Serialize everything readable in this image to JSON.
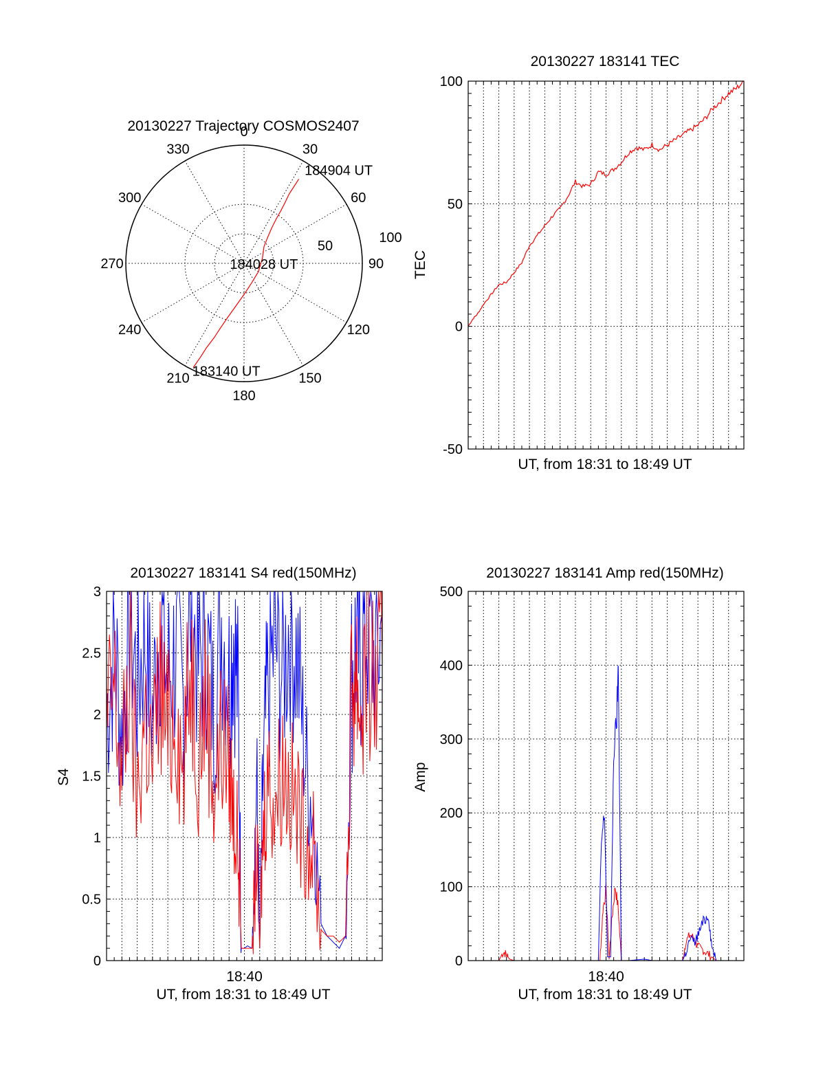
{
  "chart_data": [
    {
      "type": "polar-trajectory",
      "title": "20130227 Trajectory COSMOS2407",
      "angle_labels": [
        "0",
        "30",
        "60",
        "90",
        "120",
        "150",
        "180",
        "210",
        "240",
        "270",
        "300",
        "330"
      ],
      "radial_labels": [
        "50",
        "100"
      ],
      "radial_max": 100,
      "grid": true,
      "series": [
        {
          "color": "#ff0000",
          "points": [
            [
              206,
              98
            ],
            [
              205,
              88
            ],
            [
              204,
              78
            ],
            [
              202,
              68
            ],
            [
              200,
              58
            ],
            [
              197,
              48
            ],
            [
              193,
              40
            ],
            [
              187,
              32
            ],
            [
              178,
              25
            ],
            [
              160,
              18
            ],
            [
              120,
              14
            ],
            [
              75,
              16
            ],
            [
              50,
              22
            ],
            [
              42,
              30
            ],
            [
              38,
              38
            ],
            [
              36,
              46
            ],
            [
              35,
              54
            ],
            [
              34,
              62
            ],
            [
              33,
              70
            ],
            [
              33,
              78
            ],
            [
              33,
              85
            ]
          ]
        }
      ],
      "annotations": [
        {
          "label": "183140 UT",
          "at": [
            206,
            98
          ]
        },
        {
          "label": "184028 UT",
          "at": [
            120,
            14
          ]
        },
        {
          "label": "184904 UT",
          "at": [
            33,
            85
          ]
        }
      ]
    },
    {
      "type": "line",
      "title": "20130227 183141 TEC",
      "xlabel": "UT, from 18:31 to 18:49 UT",
      "ylabel": "TEC",
      "xlim": [
        0,
        18
      ],
      "ylim": [
        -50,
        100
      ],
      "yticks": [
        "-50",
        "0",
        "50",
        "100"
      ],
      "xticks": [],
      "grid": true,
      "series": [
        {
          "color": "#ff0000",
          "x": [
            0,
            0.3,
            0.6,
            1.0,
            1.5,
            2.0,
            2.5,
            3.0,
            3.5,
            4.0,
            4.5,
            5.0,
            5.5,
            6.0,
            6.5,
            7.0,
            7.5,
            8.0,
            8.5,
            9.0,
            9.5,
            10.0,
            10.5,
            11.0,
            11.5,
            12.0,
            12.5,
            13.0,
            13.5,
            14.0,
            14.5,
            15.0,
            15.5,
            16.0,
            16.5,
            17.0,
            17.5,
            18.0
          ],
          "values": [
            0,
            3,
            5,
            9,
            13,
            17,
            18,
            22,
            26,
            33,
            37,
            41,
            45,
            48,
            53,
            59,
            57,
            58,
            63,
            62,
            64,
            67,
            71,
            73,
            72,
            74,
            72,
            74,
            76,
            78,
            80,
            82,
            85,
            89,
            92,
            95,
            97,
            100
          ]
        }
      ]
    },
    {
      "type": "line",
      "title": "20130227 183141 S4 red(150MHz)",
      "xlabel": "UT, from 18:31 to 18:49 UT",
      "ylabel": "S4",
      "xlim": [
        0,
        18
      ],
      "ylim": [
        0,
        3
      ],
      "yticks": [
        "0",
        "0.5",
        "1",
        "1.5",
        "2",
        "2.5",
        "3"
      ],
      "xticks": [
        {
          "value": 9,
          "label": "18:40"
        }
      ],
      "grid": true,
      "series": [
        {
          "color": "#0000ff",
          "x": [
            0,
            0.5,
            1,
            1.5,
            2,
            2.5,
            3,
            3.5,
            4,
            4.5,
            5,
            5.5,
            6,
            6.5,
            7,
            7.5,
            8,
            8.3,
            8.6,
            8.8,
            9,
            9.2,
            9.5,
            9.8,
            10,
            10.2,
            10.5,
            11,
            11.5,
            12,
            12.5,
            13,
            13.5,
            14,
            14.4,
            14.8,
            15.2,
            15.6,
            16,
            16.3,
            16.6,
            17,
            17.5,
            18
          ],
          "values": [
            2.0,
            2.6,
            1.8,
            2.9,
            2.2,
            2.7,
            2.0,
            2.8,
            2.3,
            2.5,
            2.1,
            2.9,
            2.4,
            2.6,
            2.0,
            2.8,
            2.3,
            2.7,
            2.1,
            0.1,
            0.1,
            0.12,
            0.1,
            1.5,
            0.1,
            1.4,
            2.2,
            2.6,
            2.3,
            2.8,
            2.4,
            1.6,
            1.2,
            0.3,
            0.2,
            0.15,
            0.1,
            0.2,
            2.3,
            2.6,
            2.5,
            2.8,
            2.4,
            2.7
          ]
        },
        {
          "color": "#ff0000",
          "x": [
            0,
            0.5,
            1,
            1.5,
            2,
            2.5,
            3,
            3.5,
            4,
            4.5,
            5,
            5.5,
            6,
            6.5,
            7,
            7.5,
            8,
            8.3,
            8.6,
            8.8,
            9,
            9.2,
            9.5,
            9.8,
            10,
            10.2,
            10.5,
            11,
            11.5,
            12,
            12.5,
            13,
            13.5,
            14,
            14.4,
            14.8,
            15.2,
            15.6,
            16,
            16.3,
            16.6,
            17,
            17.5,
            18
          ],
          "values": [
            1.9,
            2.2,
            1.5,
            2.4,
            1.3,
            2.0,
            1.6,
            2.3,
            1.8,
            2.1,
            1.5,
            2.5,
            1.7,
            2.2,
            1.4,
            1.8,
            1.6,
            1.2,
            0.9,
            0.1,
            0.1,
            0.1,
            0.1,
            0.9,
            0.1,
            1.0,
            1.5,
            1.3,
            1.6,
            1.4,
            1.2,
            1.0,
            0.9,
            0.25,
            0.2,
            0.2,
            0.15,
            0.2,
            2.2,
            2.4,
            2.0,
            2.5,
            2.2,
            2.4
          ]
        }
      ]
    },
    {
      "type": "line",
      "title": "20130227 183141 Amp red(150MHz)",
      "xlabel": "UT, from 18:31 to 18:49 UT",
      "ylabel": "Amp",
      "xlim": [
        0,
        18
      ],
      "ylim": [
        0,
        500
      ],
      "yticks": [
        "0",
        "100",
        "200",
        "300",
        "400",
        "500"
      ],
      "xticks": [
        {
          "value": 9,
          "label": "18:40"
        }
      ],
      "grid": true,
      "series": [
        {
          "color": "#ff0000",
          "x": [
            0,
            2.0,
            2.3,
            2.5,
            2.7,
            3.0,
            8.0,
            8.6,
            8.8,
            9.0,
            9.2,
            9.4,
            9.6,
            9.8,
            10.0,
            10.2,
            14.0,
            14.2,
            14.5,
            14.8,
            15.0,
            15.3,
            15.6,
            15.9,
            16.2,
            18
          ],
          "values": [
            0,
            0,
            12,
            8,
            2,
            0,
            0,
            0,
            70,
            95,
            2,
            60,
            100,
            70,
            0,
            0,
            0,
            25,
            35,
            28,
            18,
            15,
            10,
            5,
            0,
            0
          ]
        },
        {
          "color": "#0000ff",
          "x": [
            0,
            8.0,
            8.5,
            8.7,
            8.9,
            9.1,
            9.3,
            9.5,
            9.7,
            9.8,
            10.0,
            10.5,
            11.5,
            12.0,
            14.0,
            14.2,
            14.5,
            14.8,
            15.1,
            15.4,
            15.7,
            15.9,
            16.2,
            18
          ],
          "values": [
            0,
            0,
            0,
            160,
            200,
            5,
            5,
            280,
            330,
            400,
            0,
            0,
            2,
            0,
            0,
            10,
            30,
            25,
            40,
            55,
            60,
            20,
            0,
            0
          ]
        }
      ]
    }
  ]
}
